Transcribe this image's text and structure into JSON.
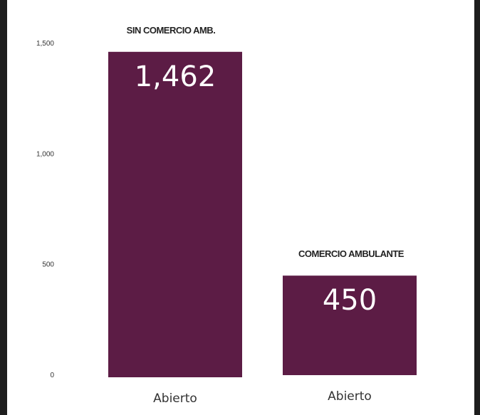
{
  "chart_data": {
    "type": "bar",
    "categories": [
      "Abierto",
      "Abierto"
    ],
    "series_labels": [
      "SIN COMERCIO AMB.",
      "COMERCIO AMBULANTE"
    ],
    "values": [
      1462,
      450
    ],
    "value_labels": [
      "1,462",
      "450"
    ],
    "y_ticks": [
      0,
      500,
      1000,
      1500
    ],
    "y_tick_labels": [
      "0",
      "500",
      "1,000",
      "1,500"
    ],
    "ylim": [
      0,
      1500
    ],
    "title": "",
    "xlabel": "",
    "ylabel": "",
    "grid": false,
    "colors": {
      "bar": "#5c1c45"
    }
  }
}
